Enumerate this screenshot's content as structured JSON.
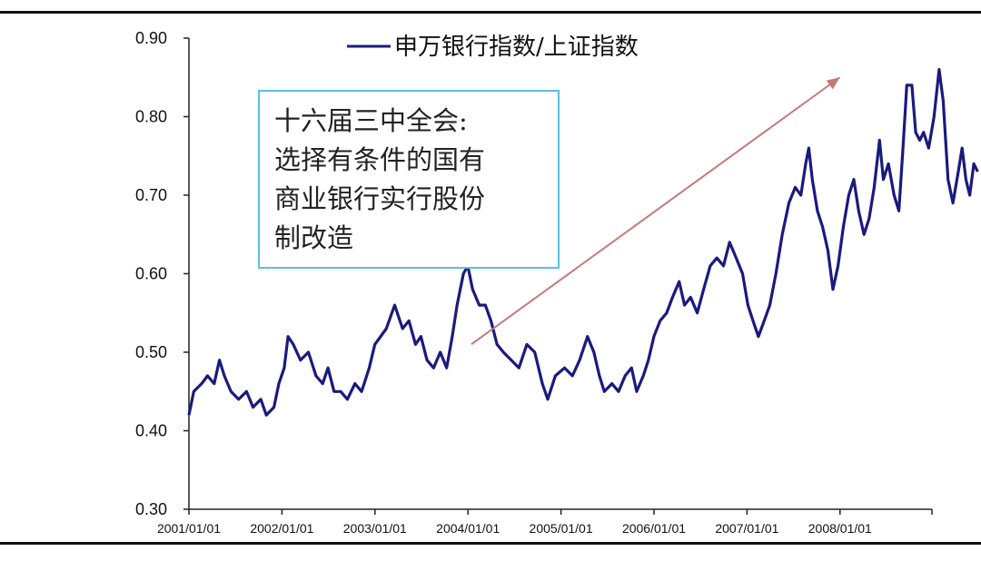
{
  "chart_data": {
    "type": "line",
    "title": "",
    "xlabel": "",
    "ylabel": "",
    "ylim": [
      0.3,
      0.9
    ],
    "yticks": [
      "0.90",
      "0.80",
      "0.70",
      "0.60",
      "0.50",
      "0.40",
      "0.30"
    ],
    "xtick_labels": [
      "2001/01/01",
      "2002/01/01",
      "2003/01/01",
      "2004/01/01",
      "2005/01/01",
      "2006/01/01",
      "2007/01/01",
      "2008/01/01"
    ],
    "grid": false,
    "legend_position": "top-center",
    "line_color": "#1a1a7e",
    "arrow_color": "#c47a7a",
    "series": [
      {
        "name": "申万银行指数/上证指数",
        "points": [
          [
            "2001-01-01",
            0.42
          ],
          [
            "2001-01-20",
            0.45
          ],
          [
            "2001-02-20",
            0.46
          ],
          [
            "2001-03-15",
            0.47
          ],
          [
            "2001-04-10",
            0.46
          ],
          [
            "2001-05-01",
            0.49
          ],
          [
            "2001-05-20",
            0.47
          ],
          [
            "2001-06-15",
            0.45
          ],
          [
            "2001-07-15",
            0.44
          ],
          [
            "2001-08-15",
            0.45
          ],
          [
            "2001-09-10",
            0.43
          ],
          [
            "2001-10-10",
            0.44
          ],
          [
            "2001-11-01",
            0.42
          ],
          [
            "2001-12-01",
            0.43
          ],
          [
            "2001-12-20",
            0.46
          ],
          [
            "2002-01-10",
            0.48
          ],
          [
            "2002-01-25",
            0.52
          ],
          [
            "2002-02-15",
            0.51
          ],
          [
            "2002-03-15",
            0.49
          ],
          [
            "2002-04-15",
            0.5
          ],
          [
            "2002-05-15",
            0.47
          ],
          [
            "2002-06-10",
            0.46
          ],
          [
            "2002-07-01",
            0.48
          ],
          [
            "2002-07-25",
            0.45
          ],
          [
            "2002-08-20",
            0.45
          ],
          [
            "2002-09-15",
            0.44
          ],
          [
            "2002-10-15",
            0.46
          ],
          [
            "2002-11-10",
            0.45
          ],
          [
            "2002-12-10",
            0.48
          ],
          [
            "2003-01-01",
            0.51
          ],
          [
            "2003-02-15",
            0.53
          ],
          [
            "2003-03-20",
            0.56
          ],
          [
            "2003-04-20",
            0.53
          ],
          [
            "2003-05-15",
            0.54
          ],
          [
            "2003-06-10",
            0.51
          ],
          [
            "2003-07-01",
            0.52
          ],
          [
            "2003-07-25",
            0.49
          ],
          [
            "2003-08-20",
            0.48
          ],
          [
            "2003-09-15",
            0.5
          ],
          [
            "2003-10-10",
            0.48
          ],
          [
            "2003-11-01",
            0.52
          ],
          [
            "2003-11-20",
            0.56
          ],
          [
            "2003-12-15",
            0.6
          ],
          [
            "2004-01-01",
            0.61
          ],
          [
            "2004-01-20",
            0.58
          ],
          [
            "2004-02-15",
            0.56
          ],
          [
            "2004-03-10",
            0.56
          ],
          [
            "2004-04-01",
            0.54
          ],
          [
            "2004-04-25",
            0.51
          ],
          [
            "2004-05-20",
            0.5
          ],
          [
            "2004-06-20",
            0.49
          ],
          [
            "2004-07-20",
            0.48
          ],
          [
            "2004-08-20",
            0.51
          ],
          [
            "2004-09-20",
            0.5
          ],
          [
            "2004-10-20",
            0.46
          ],
          [
            "2004-11-10",
            0.44
          ],
          [
            "2004-12-10",
            0.47
          ],
          [
            "2005-01-15",
            0.48
          ],
          [
            "2005-02-15",
            0.47
          ],
          [
            "2005-03-15",
            0.49
          ],
          [
            "2005-04-15",
            0.52
          ],
          [
            "2005-05-10",
            0.5
          ],
          [
            "2005-06-01",
            0.47
          ],
          [
            "2005-06-20",
            0.45
          ],
          [
            "2005-07-20",
            0.46
          ],
          [
            "2005-08-15",
            0.45
          ],
          [
            "2005-09-10",
            0.47
          ],
          [
            "2005-10-05",
            0.48
          ],
          [
            "2005-10-25",
            0.45
          ],
          [
            "2005-11-20",
            0.47
          ],
          [
            "2005-12-10",
            0.49
          ],
          [
            "2006-01-01",
            0.52
          ],
          [
            "2006-01-25",
            0.54
          ],
          [
            "2006-02-20",
            0.55
          ],
          [
            "2006-03-15",
            0.57
          ],
          [
            "2006-04-10",
            0.59
          ],
          [
            "2006-05-01",
            0.56
          ],
          [
            "2006-05-25",
            0.57
          ],
          [
            "2006-06-20",
            0.55
          ],
          [
            "2006-07-15",
            0.58
          ],
          [
            "2006-08-10",
            0.61
          ],
          [
            "2006-09-05",
            0.62
          ],
          [
            "2006-10-01",
            0.61
          ],
          [
            "2006-10-25",
            0.64
          ],
          [
            "2006-11-20",
            0.62
          ],
          [
            "2006-12-15",
            0.6
          ],
          [
            "2007-01-05",
            0.56
          ],
          [
            "2007-01-25",
            0.54
          ],
          [
            "2007-02-15",
            0.52
          ],
          [
            "2007-03-10",
            0.54
          ],
          [
            "2007-04-01",
            0.56
          ],
          [
            "2007-04-25",
            0.6
          ],
          [
            "2007-05-20",
            0.65
          ],
          [
            "2007-06-15",
            0.69
          ],
          [
            "2007-07-10",
            0.71
          ],
          [
            "2007-08-01",
            0.7
          ],
          [
            "2007-08-20",
            0.74
          ],
          [
            "2007-09-01",
            0.76
          ],
          [
            "2007-09-15",
            0.72
          ],
          [
            "2007-10-05",
            0.68
          ],
          [
            "2007-10-25",
            0.66
          ],
          [
            "2007-11-15",
            0.63
          ],
          [
            "2007-12-05",
            0.58
          ],
          [
            "2007-12-25",
            0.61
          ],
          [
            "2008-01-15",
            0.66
          ],
          [
            "2008-02-05",
            0.7
          ],
          [
            "2008-02-25",
            0.72
          ],
          [
            "2008-03-15",
            0.68
          ],
          [
            "2008-04-05",
            0.65
          ],
          [
            "2008-04-25",
            0.67
          ],
          [
            "2008-05-15",
            0.71
          ],
          [
            "2008-06-05",
            0.77
          ],
          [
            "2008-06-20",
            0.72
          ],
          [
            "2008-07-10",
            0.74
          ],
          [
            "2008-08-01",
            0.7
          ],
          [
            "2008-08-20",
            0.68
          ],
          [
            "2008-09-05",
            0.76
          ],
          [
            "2008-09-20",
            0.84
          ],
          [
            "2008-10-10",
            0.84
          ],
          [
            "2008-10-25",
            0.78
          ],
          [
            "2008-11-10",
            0.77
          ],
          [
            "2008-11-25",
            0.78
          ],
          [
            "2008-12-15",
            0.76
          ],
          [
            "2009-01-05",
            0.8
          ],
          [
            "2009-01-25",
            0.86
          ],
          [
            "2009-02-10",
            0.82
          ],
          [
            "2009-03-01",
            0.72
          ],
          [
            "2009-03-20",
            0.69
          ],
          [
            "2009-04-10",
            0.73
          ],
          [
            "2009-04-25",
            0.76
          ],
          [
            "2009-05-10",
            0.72
          ],
          [
            "2009-05-25",
            0.7
          ],
          [
            "2009-06-10",
            0.74
          ],
          [
            "2009-06-25",
            0.73
          ]
        ]
      }
    ],
    "annotation": {
      "lines": [
        "十六届三中全会:",
        "选择有条件的国有",
        "商业银行实行股份",
        "制改造"
      ],
      "border_color": "#5bc0de"
    },
    "arrow": {
      "from": [
        "2004-01-15",
        0.51
      ],
      "to": [
        "2008-01-01",
        0.85
      ]
    }
  }
}
